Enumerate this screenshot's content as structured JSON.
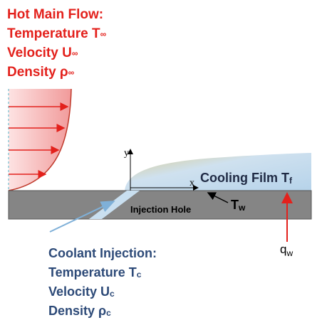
{
  "hot_flow": {
    "title": "Hot Main Flow:",
    "properties": [
      {
        "label": "Temperature T",
        "sub": "∞"
      },
      {
        "label": "Velocity U",
        "sub": "∞"
      },
      {
        "label": "Density ρ",
        "sub": "∞"
      }
    ]
  },
  "axes": {
    "y": "y",
    "x": "x"
  },
  "cooling_film": {
    "label": "Cooling Film T",
    "sub": "f"
  },
  "wall_temperature": {
    "label": "T",
    "sub": "w"
  },
  "injection_hole": "Injection Hole",
  "heat_flux": {
    "label": "q",
    "sub": "w"
  },
  "coolant": {
    "title": "Coolant Injection:",
    "properties": [
      {
        "label": "Temperature T",
        "sub": "c"
      },
      {
        "label": "Velocity U",
        "sub": "c"
      },
      {
        "label": "Density ρ",
        "sub": "c"
      }
    ]
  }
}
